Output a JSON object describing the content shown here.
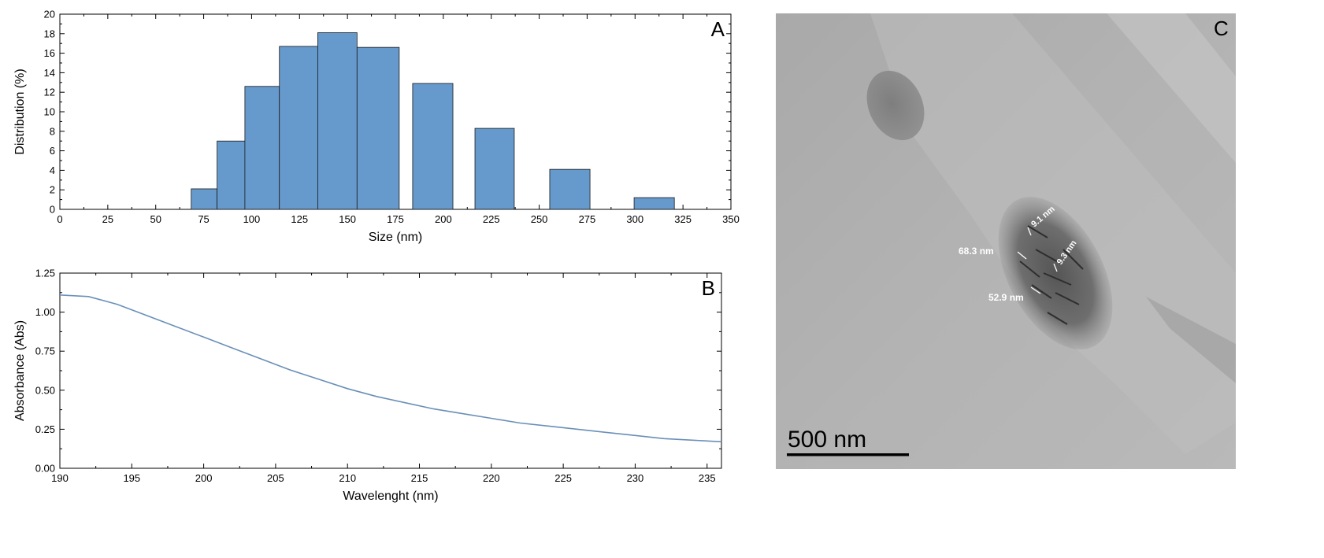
{
  "chart_data": [
    {
      "panel": "A",
      "type": "bar",
      "title": "",
      "xlabel": "Size (nm)",
      "ylabel": "Distribution (%)",
      "xlim": [
        0,
        350
      ],
      "ylim": [
        0,
        20
      ],
      "xticks": [
        0,
        25,
        50,
        75,
        100,
        125,
        150,
        175,
        200,
        225,
        250,
        275,
        300,
        325,
        350
      ],
      "yticks": [
        0,
        2,
        4,
        6,
        8,
        10,
        12,
        14,
        16,
        18,
        20
      ],
      "bars": [
        {
          "x0": 68.5,
          "x1": 82,
          "value": 2.1
        },
        {
          "x0": 82,
          "x1": 96.5,
          "value": 7.0
        },
        {
          "x0": 96.5,
          "x1": 114.5,
          "value": 12.6
        },
        {
          "x0": 114.5,
          "x1": 134.5,
          "value": 16.7
        },
        {
          "x0": 134.5,
          "x1": 155,
          "value": 18.1
        },
        {
          "x0": 155,
          "x1": 177,
          "value": 16.6
        },
        {
          "x0": 184,
          "x1": 205,
          "value": 12.9
        },
        {
          "x0": 216.5,
          "x1": 237,
          "value": 8.3
        },
        {
          "x0": 255.5,
          "x1": 276.5,
          "value": 4.1
        },
        {
          "x0": 299.5,
          "x1": 320.5,
          "value": 1.2
        }
      ],
      "bar_color": "#6699cc",
      "grid": false
    },
    {
      "panel": "B",
      "type": "line",
      "title": "",
      "xlabel": "Wavelenght (nm)",
      "ylabel": "Absorbance (Abs)",
      "xlim": [
        190,
        236
      ],
      "ylim": [
        0,
        1.25
      ],
      "xticks": [
        190,
        195,
        200,
        205,
        210,
        215,
        220,
        225,
        230,
        235
      ],
      "yticks": [
        0,
        0.25,
        0.5,
        0.75,
        1.0,
        1.25
      ],
      "ytick_labels": [
        "0.00",
        "0.25",
        "0.50",
        "0.75",
        "1.00",
        "1.25"
      ],
      "x": [
        190,
        192,
        194,
        196,
        198,
        200,
        202,
        204,
        206,
        208,
        210,
        212,
        214,
        216,
        218,
        220,
        222,
        224,
        226,
        228,
        230,
        232,
        234,
        236
      ],
      "y": [
        1.11,
        1.1,
        1.05,
        0.98,
        0.91,
        0.84,
        0.77,
        0.7,
        0.63,
        0.57,
        0.51,
        0.46,
        0.42,
        0.38,
        0.35,
        0.32,
        0.29,
        0.27,
        0.25,
        0.23,
        0.21,
        0.19,
        0.18,
        0.17
      ],
      "line_color": "#6a8fb8",
      "grid": false
    }
  ],
  "panel_c": {
    "letter": "C",
    "scale_bar_label": "500 nm",
    "measurements": [
      "68.3 nm",
      "52.9 nm",
      "9.1 nm",
      "9.3 nm"
    ]
  }
}
